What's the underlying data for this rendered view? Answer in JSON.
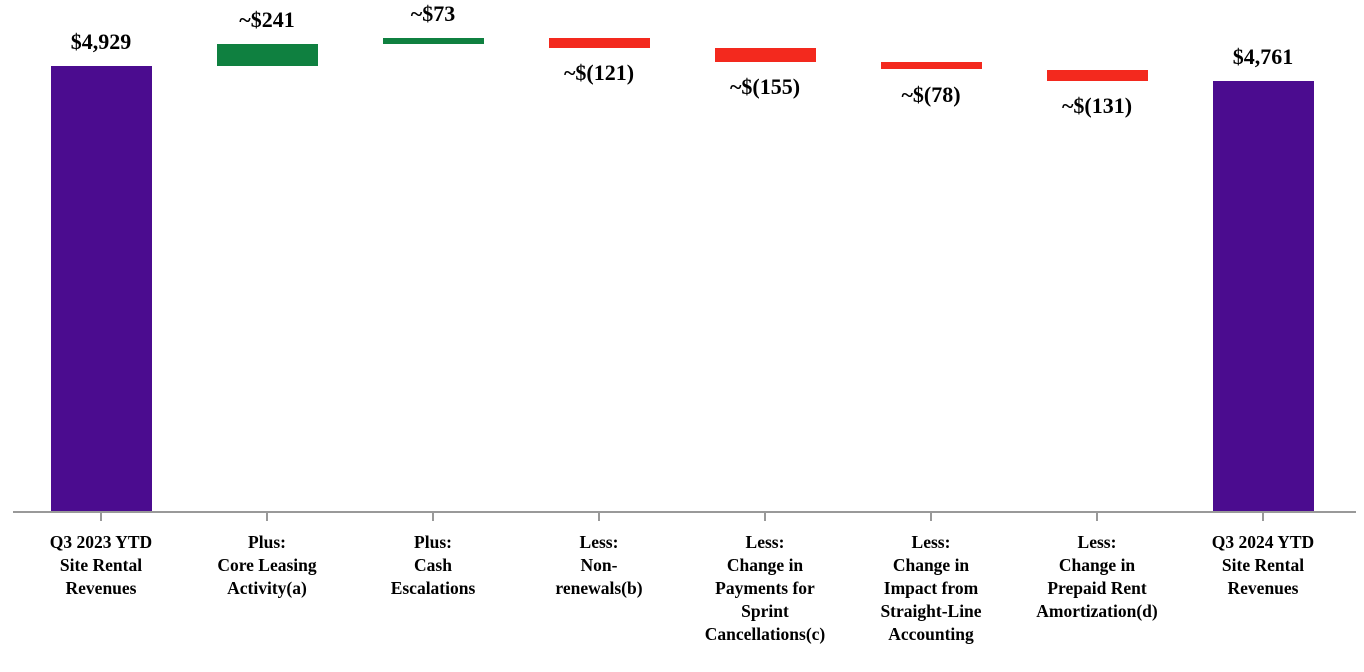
{
  "chart_data": {
    "type": "bar",
    "subtype": "waterfall",
    "title": "",
    "xlabel": "",
    "ylabel": "",
    "ylim": [
      0,
      5400
    ],
    "grid": false,
    "legend": "none",
    "colors": {
      "total": "#4B0C8F",
      "increase": "#0F8040",
      "decrease": "#F3291E",
      "axis": "#999999",
      "label": "#000000"
    },
    "bars": [
      {
        "label": "$4,929",
        "value": 4929,
        "start": 0,
        "end": 4929,
        "type": "total",
        "label_position": "above"
      },
      {
        "label": "~$241",
        "value": 241,
        "start": 4929,
        "end": 5170,
        "type": "increase",
        "label_position": "above"
      },
      {
        "label": "~$73",
        "value": 73,
        "start": 5170,
        "end": 5243,
        "type": "increase",
        "label_position": "above"
      },
      {
        "label": "~$(121)",
        "value": -121,
        "start": 5243,
        "end": 5122,
        "type": "decrease",
        "label_position": "below"
      },
      {
        "label": "~$(155)",
        "value": -155,
        "start": 5122,
        "end": 4967,
        "type": "decrease",
        "label_position": "below"
      },
      {
        "label": "~$(78)",
        "value": -78,
        "start": 4967,
        "end": 4889,
        "type": "decrease",
        "label_position": "below"
      },
      {
        "label": "~$(131)",
        "value": -131,
        "start": 4889,
        "end": 4758,
        "type": "decrease",
        "label_position": "below"
      },
      {
        "label": "$4,761",
        "value": 4761,
        "start": 0,
        "end": 4761,
        "type": "total",
        "label_position": "above"
      }
    ],
    "categories": [
      {
        "lines": [
          "Q3 2023 YTD",
          "Site Rental",
          "Revenues"
        ]
      },
      {
        "lines": [
          "Plus:",
          "Core Leasing",
          "Activity(a)"
        ]
      },
      {
        "lines": [
          "Plus:",
          "Cash",
          "Escalations"
        ]
      },
      {
        "lines": [
          "Less:",
          "Non-",
          "renewals(b)"
        ]
      },
      {
        "lines": [
          "Less:",
          "Change in",
          "Payments for",
          "Sprint",
          "Cancellations(c)"
        ]
      },
      {
        "lines": [
          "Less:",
          "Change in",
          "Impact from",
          "Straight-Line",
          "Accounting"
        ]
      },
      {
        "lines": [
          "Less:",
          "Change in",
          "Prepaid Rent",
          "Amortization(d)"
        ]
      },
      {
        "lines": [
          "Q3 2024 YTD",
          "Site Rental",
          "Revenues"
        ]
      }
    ]
  }
}
